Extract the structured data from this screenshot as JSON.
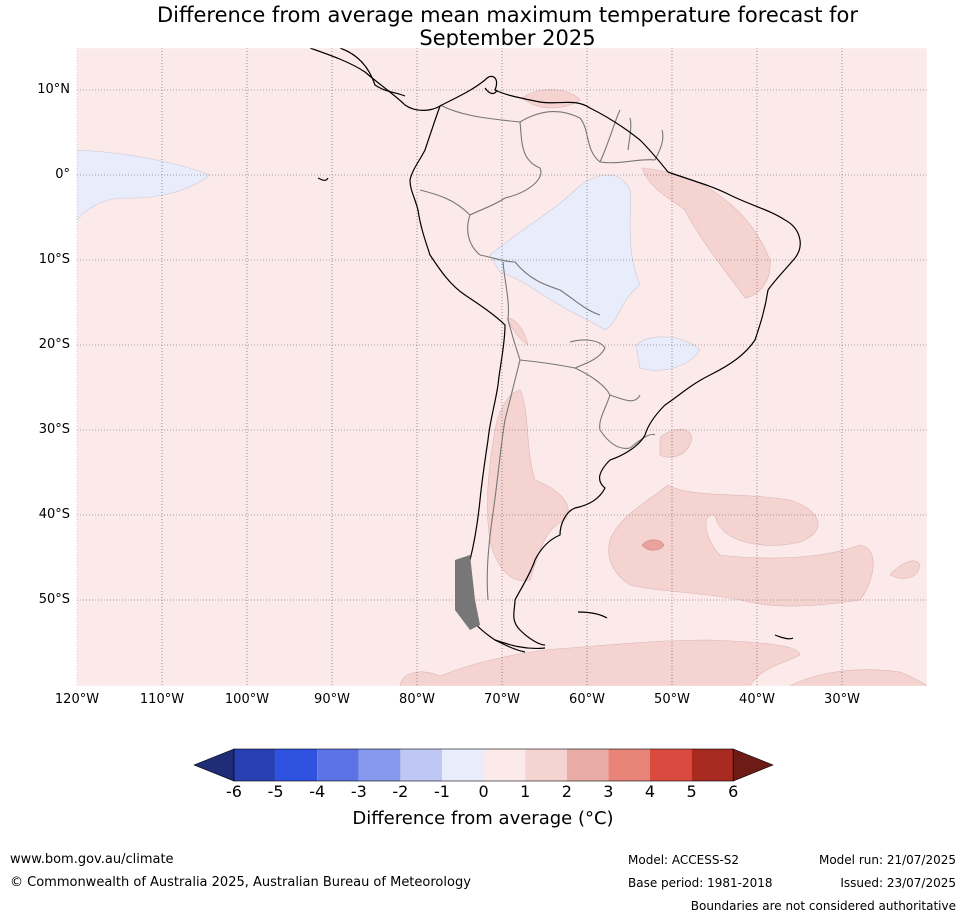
{
  "title": {
    "line1": "Difference from average mean maximum temperature forecast for",
    "line2": "September 2025"
  },
  "map": {
    "latitude_labels": [
      "10°N",
      "0°",
      "10°S",
      "20°S",
      "30°S",
      "40°S",
      "50°S"
    ],
    "longitude_labels": [
      "120°W",
      "110°W",
      "100°W",
      "90°W",
      "80°W",
      "70°W",
      "60°W",
      "50°W",
      "40°W",
      "30°W"
    ],
    "lon_range": [
      -120,
      -20
    ],
    "lat_range": [
      -60,
      15
    ],
    "background_color": "#fbeae9",
    "pale_blue_color": "#e8ecfb",
    "pink_color": "#f5d3d1",
    "red_color": "#eba19c"
  },
  "colorbar": {
    "ticks": [
      "-6",
      "-5",
      "-4",
      "-3",
      "-2",
      "-1",
      "0",
      "1",
      "2",
      "3",
      "4",
      "5",
      "6"
    ],
    "colors": [
      "#1f2d77",
      "#2940b3",
      "#2f52e0",
      "#5c73e6",
      "#8799ec",
      "#bfc8f4",
      "#e8ecfb",
      "#fbeae9",
      "#f5d3d1",
      "#eaaca7",
      "#e88478",
      "#db4a3e",
      "#a82a21",
      "#6e1a15"
    ],
    "label": "Difference from average (°C)"
  },
  "footer": {
    "url": "www.bom.gov.au/climate",
    "copyright": "© Commonwealth of Australia 2025, Australian Bureau of Meteorology",
    "model": "Model: ACCESS-S2",
    "base_period": "Base period: 1981-2018",
    "model_run": "Model run: 21/07/2025",
    "issued": "Issued: 23/07/2025",
    "disclaimer": "Boundaries are not considered authoritative"
  }
}
